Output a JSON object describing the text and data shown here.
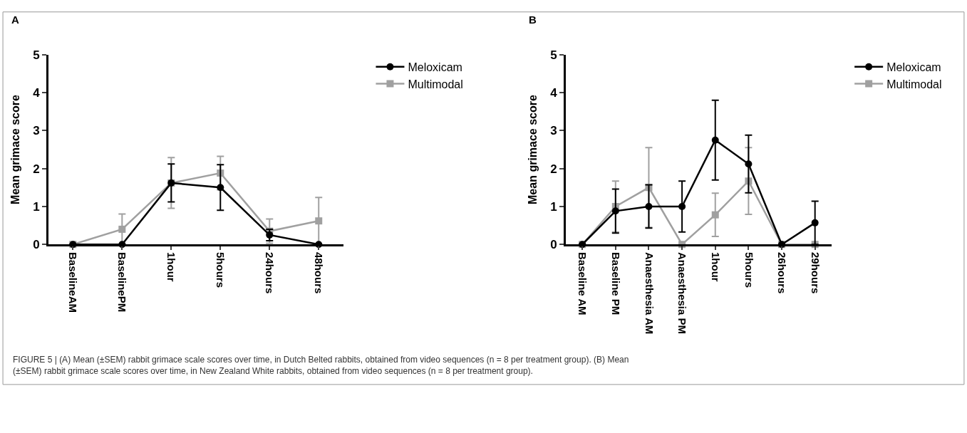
{
  "chart_data": [
    {
      "type": "line",
      "title": "A",
      "ylabel": "Mean grimace score",
      "categories": [
        "BaselineAM",
        "BaselinePM",
        "1hour",
        "5hours",
        "24hours",
        "48hours"
      ],
      "ylim": [
        0,
        5
      ],
      "yticks": [
        0,
        1,
        2,
        3,
        4,
        5
      ],
      "legend": "right",
      "line_style": "solid",
      "series": [
        {
          "name": "Meloxicam",
          "color": "#000000",
          "marker": "circle",
          "values": [
            0,
            0,
            1.62,
            1.5,
            0.25,
            0
          ],
          "errors": [
            null,
            null,
            0.5,
            0.6,
            0.15,
            null
          ]
        },
        {
          "name": "Multimodal",
          "color": "#a0a0a0",
          "marker": "square",
          "values": [
            0,
            0.4,
            1.62,
            1.88,
            0.35,
            0.62
          ],
          "errors": [
            null,
            0.4,
            0.67,
            0.44,
            0.32,
            0.62
          ]
        }
      ],
      "annotations": [
        "FIGURE 5 | (A) Mean (±SEM) rabbit grimace scale scores over time, in Dutch Belted rabbits, obtained from video sequences (n = 8 per treatment group). (B) Mean\n(±SEM) rabbit grimace scale scores over time, in New Zealand White rabbits, obtained from video sequences (n = 8 per treatment group)."
      ]
    },
    {
      "type": "line",
      "title": "B",
      "ylabel": "Mean grimace score",
      "categories": [
        "Baseline AM",
        "Baseline PM",
        "Anaesthesia AM",
        "Anaesthesia PM",
        "1hour",
        "5hours",
        "26hours",
        "29hours"
      ],
      "ylim": [
        0,
        5
      ],
      "yticks": [
        0,
        1,
        2,
        3,
        4,
        5
      ],
      "legend": "right",
      "line_style": "solid",
      "series": [
        {
          "name": "Meloxicam",
          "color": "#000000",
          "marker": "circle",
          "values": [
            0,
            0.88,
            1.0,
            1.0,
            2.75,
            2.12,
            0,
            0.57
          ],
          "errors": [
            null,
            0.58,
            0.57,
            0.67,
            1.05,
            0.76,
            null,
            0.57
          ]
        },
        {
          "name": "Multimodal",
          "color": "#a0a0a0",
          "marker": "square",
          "values": [
            0,
            1.0,
            1.5,
            0,
            0.78,
            1.67,
            0,
            0
          ],
          "errors": [
            null,
            0.67,
            1.05,
            null,
            0.57,
            0.88,
            null,
            null
          ]
        }
      ]
    }
  ]
}
